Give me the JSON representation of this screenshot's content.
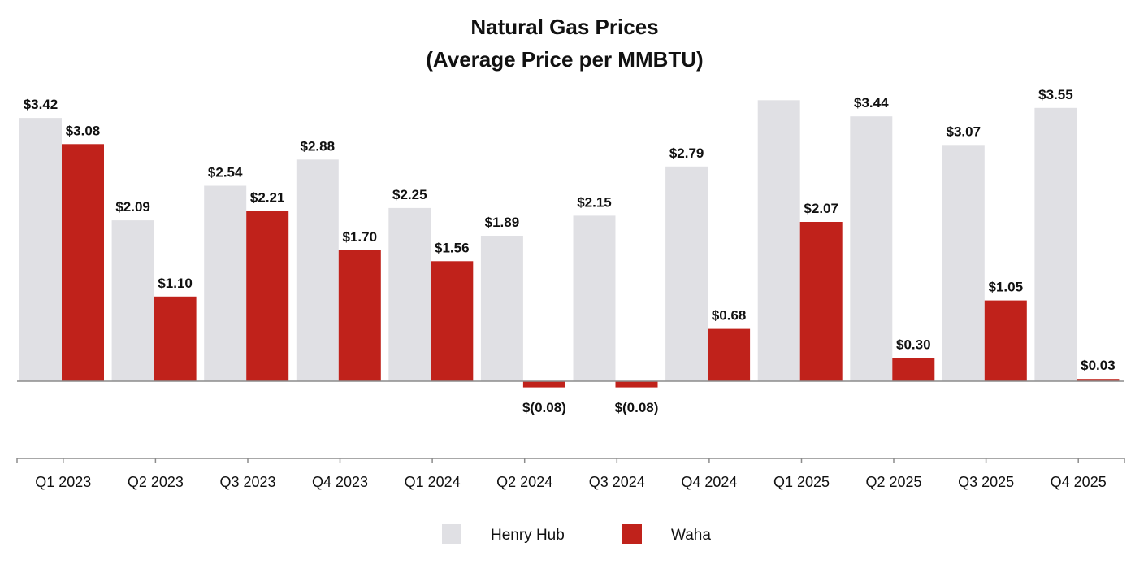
{
  "chart_data": {
    "type": "bar",
    "title": "Natural Gas Prices",
    "subtitle": "(Average Price per MMBTU)",
    "xlabel": "",
    "ylabel": "",
    "ylim": [
      -0.4,
      3.55
    ],
    "grid": false,
    "legend_position": "bottom-center",
    "categories": [
      "Q1 2023",
      "Q2 2023",
      "Q3 2023",
      "Q4 2023",
      "Q1 2024",
      "Q2 2024",
      "Q3 2024",
      "Q4 2024",
      "Q1 2025",
      "Q2 2025",
      "Q3 2025",
      "Q4 2025"
    ],
    "series": [
      {
        "name": "Henry Hub",
        "color": "#e0e0e4",
        "values": [
          3.42,
          2.09,
          2.54,
          2.88,
          2.25,
          1.89,
          2.15,
          2.79,
          3.65,
          3.44,
          3.07,
          3.55
        ],
        "labels": [
          "$3.42",
          "$2.09",
          "$2.54",
          "$2.88",
          "$2.25",
          "$1.89",
          "$2.15",
          "$2.79",
          "",
          "$3.44",
          "$3.07",
          "$3.55"
        ]
      },
      {
        "name": "Waha",
        "color": "#c0221b",
        "values": [
          3.08,
          1.1,
          2.21,
          1.7,
          1.56,
          -0.08,
          -0.08,
          0.68,
          2.07,
          0.3,
          1.05,
          0.03
        ],
        "labels": [
          "$3.08",
          "$1.10",
          "$2.21",
          "$1.70",
          "$1.56",
          "$(0.08)",
          "$(0.08)",
          "$0.68",
          "$2.07",
          "$0.30",
          "$1.05",
          "$0.03"
        ]
      }
    ]
  }
}
